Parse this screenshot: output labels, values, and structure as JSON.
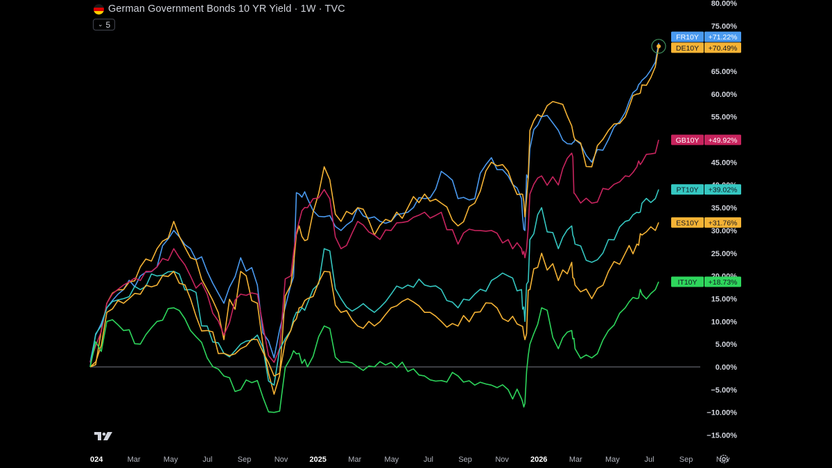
{
  "header": {
    "title": "German Government Bonds 10 YR Yield · 1W · TVC",
    "flag_icon": "germany-flag-icon",
    "indicators_count": "5"
  },
  "chart_data": {
    "type": "line",
    "title": "German Government Bonds 10 YR Yield · 1W · TVC",
    "y_unit": "percent change",
    "ylim": [
      -17,
      80
    ],
    "y_ticks": [
      "80.00%",
      "75.00%",
      "70.00%",
      "65.00%",
      "60.00%",
      "55.00%",
      "50.00%",
      "45.00%",
      "40.00%",
      "35.00%",
      "30.00%",
      "25.00%",
      "20.00%",
      "15.00%",
      "10.00%",
      "5.00%",
      "0.00%",
      "−5.00%",
      "−10.00%",
      "−15.00%"
    ],
    "y_tick_values": [
      80,
      75,
      70,
      65,
      60,
      55,
      50,
      45,
      40,
      35,
      30,
      25,
      20,
      15,
      10,
      5,
      0,
      -5,
      -10,
      -15
    ],
    "x_tick_labels": [
      "024",
      "Mar",
      "May",
      "Jul",
      "Sep",
      "Nov",
      "2025",
      "Mar",
      "May",
      "Jul",
      "Sep",
      "Nov",
      "2026",
      "Mar",
      "May",
      "Jul",
      "Sep",
      "Nov"
    ],
    "x_tick_bold": [
      true,
      false,
      false,
      false,
      false,
      false,
      true,
      false,
      false,
      false,
      false,
      false,
      true,
      false,
      false,
      false,
      false,
      false
    ],
    "x_tick_months": [
      0,
      2,
      4,
      6,
      8,
      10,
      12,
      14,
      16,
      18,
      20,
      22,
      24,
      26,
      28,
      30,
      32,
      34
    ],
    "x_range_months": [
      0,
      34.5
    ],
    "anchors": [
      0,
      1,
      2,
      3,
      4,
      5,
      6,
      7,
      8,
      9,
      10,
      11,
      12,
      12.5,
      13,
      14,
      15,
      16,
      17,
      18,
      19,
      20,
      21,
      22,
      23,
      24,
      25,
      25.8,
      26,
      26.3,
      27,
      28,
      28.8,
      29,
      30,
      31,
      32,
      32.7,
      33,
      33.8,
      34.0
    ],
    "series": [
      {
        "name": "FR10Y",
        "label": "+71.22%",
        "color": "#4a9af0",
        "last": 71.22,
        "values": [
          1,
          13,
          17,
          20,
          22,
          30,
          26,
          21,
          14,
          24,
          18,
          2,
          18,
          38,
          37,
          33,
          30,
          35,
          33,
          32,
          34,
          37,
          43,
          37,
          37,
          46,
          42,
          37,
          30,
          48,
          55,
          52,
          49,
          50,
          45,
          50,
          56,
          61,
          63,
          67,
          71.22
        ]
      },
      {
        "name": "DE10Y",
        "label": "+70.49%",
        "color": "#f5b335",
        "last": 70.49,
        "values": [
          0,
          14,
          17,
          22,
          26,
          32,
          24,
          17,
          6,
          21,
          14,
          -6,
          18,
          31,
          28,
          44,
          32,
          35,
          29,
          32,
          35,
          38,
          36,
          31,
          36,
          45,
          43,
          38,
          33,
          52,
          55,
          58,
          53,
          50,
          44,
          52,
          55,
          60,
          62,
          66,
          70.49
        ]
      },
      {
        "name": "GB10Y",
        "label": "+49.92%",
        "color": "#c8245e",
        "last": 49.92,
        "values": [
          1,
          14,
          18,
          19,
          22,
          26,
          20,
          16,
          7,
          16,
          16,
          1,
          20,
          32,
          35,
          39,
          26,
          32,
          29,
          30,
          32,
          34,
          34,
          27,
          30,
          30,
          28,
          26,
          24,
          38,
          42,
          40,
          47,
          38,
          36,
          39,
          42,
          44,
          45,
          47,
          49.92
        ]
      },
      {
        "name": "PT10Y",
        "label": "+39.02%",
        "color": "#35c7c1",
        "last": 39.02,
        "values": [
          0,
          13,
          15,
          17,
          20,
          21,
          17,
          9,
          3,
          5,
          7,
          -4,
          8,
          12,
          14,
          26,
          15,
          13,
          12,
          16,
          18,
          18,
          17,
          13,
          16,
          19,
          20,
          17,
          10,
          28,
          35,
          26,
          31,
          27,
          23,
          28,
          32,
          34,
          36,
          37,
          39.02
        ]
      },
      {
        "name": "ES10Y",
        "label": "+31.76%",
        "color": "#f5b335",
        "last": 31.76,
        "values": [
          0,
          12,
          14,
          16,
          18,
          21,
          15,
          8,
          3,
          4,
          6,
          -2,
          8,
          13,
          15,
          21,
          12,
          9,
          9,
          13,
          15,
          12,
          10,
          9,
          12,
          14,
          10,
          9,
          6,
          17,
          25,
          19,
          23,
          18,
          15,
          21,
          25,
          27,
          29,
          30,
          31.76
        ]
      },
      {
        "name": "IT10Y",
        "label": "+18.73%",
        "color": "#2ed65c",
        "last": 18.73,
        "values": [
          0,
          10,
          8,
          5,
          10,
          13,
          8,
          2,
          -2,
          -5,
          -3,
          -10,
          2,
          3,
          0,
          9,
          1,
          0,
          0,
          1,
          -1,
          -2,
          -3,
          -2,
          -4,
          -4,
          -5,
          -7,
          -8,
          5,
          13,
          4,
          8,
          4,
          2,
          8,
          13,
          15,
          16,
          17,
          18.73
        ]
      }
    ],
    "marker_series": "DE10Y",
    "grid": false,
    "legend": "right"
  },
  "logo": "tradingview-logo",
  "settings_icon": "gear-icon"
}
